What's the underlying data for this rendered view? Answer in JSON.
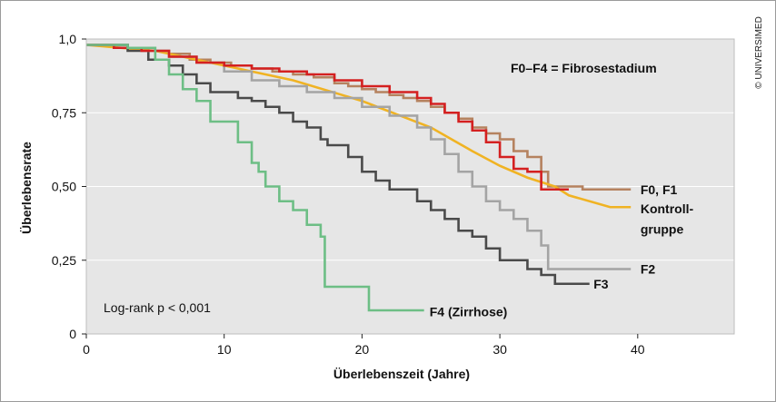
{
  "copyright": "© UNIVERSIMED",
  "chart_data": {
    "type": "line",
    "step": true,
    "xlabel": "Überlebenszeit (Jahre)",
    "ylabel": "Überlebensrate",
    "xlim": [
      0,
      47
    ],
    "ylim": [
      0,
      1.0
    ],
    "x_ticks": [
      0,
      10,
      20,
      30,
      40
    ],
    "y_ticks": [
      0,
      0.25,
      0.5,
      0.75,
      1.0
    ],
    "x_tick_labels": [
      "0",
      "10",
      "20",
      "30",
      "40"
    ],
    "y_tick_labels": [
      "0",
      "0,25",
      "0,50",
      "0,75",
      "1,0"
    ],
    "annotation_note": "F0–F4 = Fibrosestadium",
    "stat_note": "Log-rank p < 0,001",
    "background": "#e6e6e6",
    "series": [
      {
        "name": "F0, F1",
        "color": "#b5825f",
        "points": [
          [
            0,
            0.98
          ],
          [
            1.5,
            0.98
          ],
          [
            3,
            0.97
          ],
          [
            4.5,
            0.96
          ],
          [
            6,
            0.95
          ],
          [
            7.5,
            0.93
          ],
          [
            9,
            0.92
          ],
          [
            10.5,
            0.91
          ],
          [
            12,
            0.9
          ],
          [
            13.5,
            0.89
          ],
          [
            15,
            0.88
          ],
          [
            16.5,
            0.87
          ],
          [
            18,
            0.85
          ],
          [
            19,
            0.84
          ],
          [
            20,
            0.83
          ],
          [
            21,
            0.82
          ],
          [
            22,
            0.81
          ],
          [
            23,
            0.8
          ],
          [
            24,
            0.79
          ],
          [
            25,
            0.77
          ],
          [
            26,
            0.75
          ],
          [
            27,
            0.73
          ],
          [
            28,
            0.7
          ],
          [
            29,
            0.68
          ],
          [
            30,
            0.66
          ],
          [
            31,
            0.62
          ],
          [
            32,
            0.6
          ],
          [
            33,
            0.55
          ],
          [
            33.5,
            0.5
          ],
          [
            36,
            0.49
          ],
          [
            39.5,
            0.49
          ]
        ]
      },
      {
        "name": "Kontroll-gruppe",
        "color": "#f0b323",
        "smooth": true,
        "points": [
          [
            0,
            0.98
          ],
          [
            5,
            0.96
          ],
          [
            10,
            0.91
          ],
          [
            15,
            0.86
          ],
          [
            20,
            0.79
          ],
          [
            25,
            0.7
          ],
          [
            28,
            0.62
          ],
          [
            30,
            0.57
          ],
          [
            32,
            0.53
          ],
          [
            34,
            0.5
          ],
          [
            35,
            0.47
          ],
          [
            38,
            0.43
          ],
          [
            39.5,
            0.43
          ]
        ]
      },
      {
        "name": "F3",
        "color": "#4a4a4a",
        "points": [
          [
            0,
            0.98
          ],
          [
            3,
            0.96
          ],
          [
            4.5,
            0.93
          ],
          [
            6,
            0.91
          ],
          [
            7,
            0.88
          ],
          [
            8,
            0.85
          ],
          [
            9,
            0.82
          ],
          [
            11,
            0.8
          ],
          [
            12,
            0.79
          ],
          [
            13,
            0.77
          ],
          [
            14,
            0.75
          ],
          [
            15,
            0.72
          ],
          [
            16,
            0.7
          ],
          [
            17,
            0.66
          ],
          [
            17.5,
            0.64
          ],
          [
            19,
            0.6
          ],
          [
            20,
            0.55
          ],
          [
            21,
            0.52
          ],
          [
            22,
            0.49
          ],
          [
            24,
            0.45
          ],
          [
            25,
            0.42
          ],
          [
            26,
            0.39
          ],
          [
            27,
            0.35
          ],
          [
            28,
            0.33
          ],
          [
            29,
            0.29
          ],
          [
            30,
            0.25
          ],
          [
            32,
            0.22
          ],
          [
            33,
            0.2
          ],
          [
            34,
            0.17
          ],
          [
            35,
            0.17
          ],
          [
            36.5,
            0.17
          ]
        ]
      },
      {
        "name": "F2",
        "color": "#a4a4a4",
        "points": [
          [
            0,
            0.98
          ],
          [
            2,
            0.97
          ],
          [
            4,
            0.96
          ],
          [
            6,
            0.94
          ],
          [
            8,
            0.92
          ],
          [
            10,
            0.89
          ],
          [
            12,
            0.86
          ],
          [
            14,
            0.84
          ],
          [
            16,
            0.82
          ],
          [
            18,
            0.8
          ],
          [
            20,
            0.77
          ],
          [
            22,
            0.74
          ],
          [
            24,
            0.7
          ],
          [
            25,
            0.66
          ],
          [
            26,
            0.61
          ],
          [
            27,
            0.55
          ],
          [
            28,
            0.5
          ],
          [
            29,
            0.45
          ],
          [
            30,
            0.42
          ],
          [
            31,
            0.39
          ],
          [
            32,
            0.35
          ],
          [
            33,
            0.3
          ],
          [
            33.5,
            0.22
          ],
          [
            35,
            0.22
          ],
          [
            39.5,
            0.22
          ]
        ]
      },
      {
        "name": "F0, F1",
        "color": "#d42020",
        "points": [
          [
            0,
            0.98
          ],
          [
            2,
            0.97
          ],
          [
            4,
            0.96
          ],
          [
            6,
            0.94
          ],
          [
            8,
            0.92
          ],
          [
            10,
            0.91
          ],
          [
            12,
            0.9
          ],
          [
            14,
            0.89
          ],
          [
            16,
            0.88
          ],
          [
            18,
            0.86
          ],
          [
            20,
            0.84
          ],
          [
            22,
            0.82
          ],
          [
            24,
            0.8
          ],
          [
            25,
            0.78
          ],
          [
            26,
            0.75
          ],
          [
            27,
            0.72
          ],
          [
            28,
            0.69
          ],
          [
            29,
            0.65
          ],
          [
            30,
            0.6
          ],
          [
            31,
            0.56
          ],
          [
            32,
            0.55
          ],
          [
            33,
            0.49
          ],
          [
            35,
            0.49
          ]
        ]
      },
      {
        "name": "F4 (Zirrhose)",
        "color": "#6dbe85",
        "points": [
          [
            0,
            0.98
          ],
          [
            3,
            0.97
          ],
          [
            5,
            0.93
          ],
          [
            6,
            0.88
          ],
          [
            7,
            0.83
          ],
          [
            8,
            0.79
          ],
          [
            9,
            0.72
          ],
          [
            11,
            0.65
          ],
          [
            12,
            0.58
          ],
          [
            12.5,
            0.55
          ],
          [
            13,
            0.5
          ],
          [
            14,
            0.45
          ],
          [
            15,
            0.42
          ],
          [
            16,
            0.37
          ],
          [
            17,
            0.33
          ],
          [
            17.3,
            0.16
          ],
          [
            19,
            0.16
          ],
          [
            20.5,
            0.08
          ],
          [
            24.5,
            0.08
          ]
        ]
      }
    ],
    "labels": [
      {
        "text": "F0, F1",
        "x": 40.2,
        "y": 0.49
      },
      {
        "text": "Kontroll-",
        "x": 40.2,
        "y": 0.425
      },
      {
        "text": "gruppe",
        "x": 40.2,
        "y": 0.355
      },
      {
        "text": "F2",
        "x": 40.2,
        "y": 0.22
      },
      {
        "text": "F3",
        "x": 36.8,
        "y": 0.17
      },
      {
        "text": "F4 (Zirrhose)",
        "x": 24.9,
        "y": 0.075
      }
    ]
  }
}
